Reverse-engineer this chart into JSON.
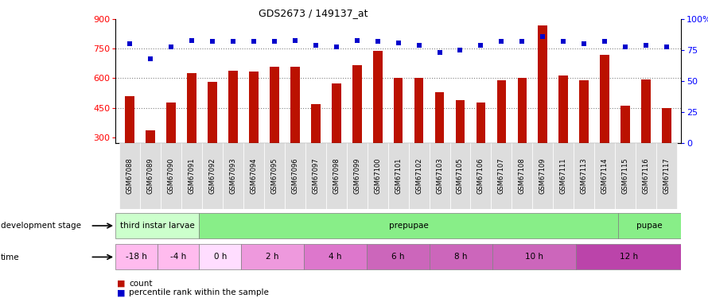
{
  "title": "GDS2673 / 149137_at",
  "samples": [
    "GSM67088",
    "GSM67089",
    "GSM67090",
    "GSM67091",
    "GSM67092",
    "GSM67093",
    "GSM67094",
    "GSM67095",
    "GSM67096",
    "GSM67097",
    "GSM67098",
    "GSM67099",
    "GSM67100",
    "GSM67101",
    "GSM67102",
    "GSM67103",
    "GSM67105",
    "GSM67106",
    "GSM67107",
    "GSM67108",
    "GSM67109",
    "GSM67111",
    "GSM67113",
    "GSM67114",
    "GSM67115",
    "GSM67116",
    "GSM67117"
  ],
  "counts": [
    510,
    335,
    475,
    625,
    580,
    640,
    635,
    660,
    660,
    470,
    575,
    665,
    740,
    600,
    600,
    530,
    490,
    475,
    590,
    600,
    870,
    615,
    590,
    720,
    460,
    595,
    450
  ],
  "percentile": [
    80,
    68,
    78,
    83,
    82,
    82,
    82,
    82,
    83,
    79,
    78,
    83,
    82,
    81,
    79,
    73,
    75,
    79,
    82,
    82,
    86,
    82,
    80,
    82,
    78,
    79,
    78
  ],
  "ylim_left": [
    270,
    900
  ],
  "ylim_right": [
    0,
    100
  ],
  "yticks_left": [
    300,
    450,
    600,
    750,
    900
  ],
  "yticks_right": [
    0,
    25,
    50,
    75,
    100
  ],
  "hlines": [
    450,
    600,
    750
  ],
  "bar_color": "#bb1100",
  "dot_color": "#0000cc",
  "bar_width": 0.45,
  "legend_count_color": "#bb1100",
  "legend_pct_color": "#0000cc",
  "dev_stage_light_green": "#ccffcc",
  "dev_stage_green": "#88ee88",
  "time_light_pink": "#ffccee",
  "time_pink": "#ee88cc",
  "time_dark_pink": "#cc55bb",
  "tick_label_bg": "#dddddd"
}
